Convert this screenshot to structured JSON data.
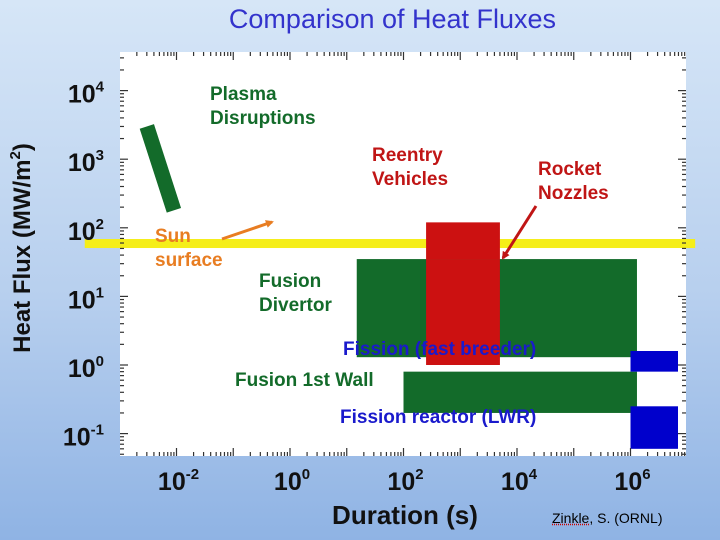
{
  "slide_title": "Comparison of Heat Fluxes",
  "credit": {
    "author": "Zinkle",
    "rest": ", S. (ORNL)"
  },
  "colors": {
    "green": "#136b2a",
    "red": "#cc1111",
    "blue": "#0000cc",
    "yellow": "#f5ee19",
    "orange": "#e87d22",
    "red_text": "#c01515",
    "dark_green_text": "#136b2a",
    "blue_text": "#1a1acc"
  },
  "chart_data": {
    "type": "range-boxes",
    "xlabel": "Duration (s)",
    "ylabel": "Heat Flux (MW/m2)",
    "x_scale": "log",
    "y_scale": "log",
    "xlim": [
      0.0005,
      10000000
    ],
    "ylim": [
      0.03,
      50000
    ],
    "x_ticks": [
      {
        "label": "10-2",
        "base": "10",
        "exp": "-2",
        "value": 0.01
      },
      {
        "label": "100",
        "base": "10",
        "exp": "0",
        "value": 1
      },
      {
        "label": "102",
        "base": "10",
        "exp": "2",
        "value": 100
      },
      {
        "label": "104",
        "base": "10",
        "exp": "4",
        "value": 10000
      },
      {
        "label": "106",
        "base": "10",
        "exp": "6",
        "value": 1000000
      }
    ],
    "y_ticks": [
      {
        "label": "104",
        "base": "10",
        "exp": "4",
        "value": 10000
      },
      {
        "label": "103",
        "base": "10",
        "exp": "3",
        "value": 1000
      },
      {
        "label": "102",
        "base": "10",
        "exp": "2",
        "value": 100
      },
      {
        "label": "101",
        "base": "10",
        "exp": "1",
        "value": 10
      },
      {
        "label": "100",
        "base": "10",
        "exp": "0",
        "value": 1
      },
      {
        "label": "10-1",
        "base": "10",
        "exp": "-1",
        "value": 0.1
      }
    ],
    "regions": [
      {
        "name": "Fusion Divertor",
        "color": "green",
        "x": [
          15,
          1300000
        ],
        "y": [
          1.3,
          35
        ]
      },
      {
        "name": "Fusion 1st Wall",
        "color": "green",
        "x": [
          100,
          1300000
        ],
        "y": [
          0.2,
          0.8
        ]
      },
      {
        "name": "Fission (fast breeder)",
        "color": "blue",
        "x": [
          1000000,
          10000000
        ],
        "y": [
          0.8,
          1.6
        ]
      },
      {
        "name": "Fission reactor (LWR)",
        "color": "blue",
        "x": [
          1000000,
          10000000
        ],
        "y": [
          0.06,
          0.25
        ]
      },
      {
        "name": "Reentry Vehicles",
        "color": "red",
        "x": [
          250,
          5000
        ],
        "y": [
          35,
          120
        ]
      },
      {
        "name": "Rocket Nozzles",
        "color": "red",
        "x": [
          250,
          5000
        ],
        "y": [
          1.0,
          35
        ]
      }
    ],
    "sun_surface": {
      "name": "Sun surface",
      "color": "yellow",
      "y": 60,
      "x": [
        0.001,
        5000000
      ]
    },
    "plasma_disruptions": {
      "name": "Plasma Disruptions",
      "color": "green",
      "from": {
        "x": 0.003,
        "y": 3000
      },
      "to": {
        "x": 0.009,
        "y": 180
      }
    },
    "annotations": [
      {
        "lines": [
          "Plasma",
          "Disruptions"
        ],
        "color": "dark_green_text"
      },
      {
        "lines": [
          "Reentry",
          "Vehicles"
        ],
        "color": "red_text"
      },
      {
        "lines": [
          "Rocket",
          "Nozzles"
        ],
        "color": "red_text"
      },
      {
        "lines": [
          "Sun",
          "surface"
        ],
        "color": "orange"
      },
      {
        "lines": [
          "Fusion",
          "Divertor"
        ],
        "color": "dark_green_text"
      },
      {
        "lines": [
          "Fission  (fast  breeder)"
        ],
        "color": "blue_text"
      },
      {
        "lines": [
          "Fusion 1st Wall"
        ],
        "color": "dark_green_text"
      },
      {
        "lines": [
          "Fission reactor (LWR)"
        ],
        "color": "blue_text"
      }
    ]
  }
}
